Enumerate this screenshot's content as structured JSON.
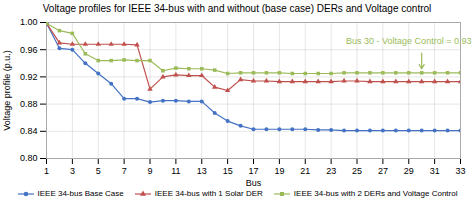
{
  "chart_data": {
    "type": "line",
    "title": "Voltage profiles for IEEE 34-bus with and without (base case) DERs and Voltage control",
    "xlabel": "Bus",
    "ylabel": "Voltage profile (p.u.)",
    "x": [
      1,
      2,
      3,
      4,
      5,
      6,
      7,
      8,
      9,
      10,
      11,
      12,
      13,
      14,
      15,
      16,
      17,
      18,
      19,
      20,
      21,
      22,
      23,
      24,
      25,
      26,
      27,
      28,
      29,
      30,
      31,
      32,
      33
    ],
    "series": [
      {
        "name": "IEEE 34-bus Base Case",
        "color": "#4472C4",
        "marker": "circle",
        "values": [
          0.999,
          0.962,
          0.96,
          0.94,
          0.925,
          0.91,
          0.888,
          0.888,
          0.883,
          0.885,
          0.885,
          0.884,
          0.884,
          0.867,
          0.855,
          0.848,
          0.843,
          0.843,
          0.843,
          0.843,
          0.843,
          0.842,
          0.842,
          0.841,
          0.841,
          0.841,
          0.841,
          0.841,
          0.841,
          0.841,
          0.841,
          0.841,
          0.841
        ]
      },
      {
        "name": "IEEE 34-bus with 1 Solar DER",
        "color": "#C0504D",
        "marker": "triangle",
        "values": [
          0.999,
          0.97,
          0.968,
          0.968,
          0.968,
          0.968,
          0.968,
          0.967,
          0.902,
          0.92,
          0.923,
          0.922,
          0.922,
          0.905,
          0.9,
          0.916,
          0.914,
          0.914,
          0.913,
          0.913,
          0.913,
          0.913,
          0.913,
          0.914,
          0.914,
          0.913,
          0.913,
          0.913,
          0.913,
          0.913,
          0.913,
          0.913,
          0.913
        ]
      },
      {
        "name": "IEEE 34-bus with 2 DERs and Voltage Control",
        "color": "#9BBB59",
        "marker": "square",
        "values": [
          0.999,
          0.988,
          0.984,
          0.954,
          0.944,
          0.944,
          0.945,
          0.944,
          0.944,
          0.929,
          0.933,
          0.932,
          0.932,
          0.93,
          0.925,
          0.926,
          0.926,
          0.926,
          0.926,
          0.925,
          0.925,
          0.925,
          0.925,
          0.926,
          0.926,
          0.926,
          0.926,
          0.926,
          0.926,
          0.926,
          0.926,
          0.926,
          0.926
        ]
      }
    ],
    "xlim": [
      1,
      33
    ],
    "ylim": [
      0.8,
      1.0
    ],
    "xticks": [
      1,
      3,
      5,
      7,
      9,
      11,
      13,
      15,
      17,
      19,
      21,
      23,
      25,
      27,
      29,
      31,
      33
    ],
    "yticks": [
      {
        "value": 0.8,
        "label": "0.80"
      },
      0.84,
      0.88,
      0.92,
      0.96,
      {
        "value": 1.0,
        "label": "1.00"
      }
    ],
    "grid": true,
    "legend": "bottom",
    "annotations": [
      {
        "text": "Bus 30 - Voltage Control = 0.93",
        "x": 29,
        "y": 0.968,
        "color": "#9BBB59",
        "arrow": {
          "x": 30,
          "y_start": 0.955,
          "y_end": 0.932
        }
      }
    ]
  }
}
